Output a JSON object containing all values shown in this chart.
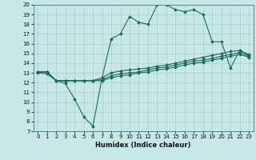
{
  "xlabel": "Humidex (Indice chaleur)",
  "background_color": "#c8e8e8",
  "grid_color": "#a8cccc",
  "line_color": "#1a6b5a",
  "xlim": [
    -0.5,
    23.5
  ],
  "ylim": [
    7,
    20
  ],
  "xticks": [
    0,
    1,
    2,
    3,
    4,
    5,
    6,
    7,
    8,
    9,
    10,
    11,
    12,
    13,
    14,
    15,
    16,
    17,
    18,
    19,
    20,
    21,
    22,
    23
  ],
  "yticks": [
    7,
    8,
    9,
    10,
    11,
    12,
    13,
    14,
    15,
    16,
    17,
    18,
    19,
    20
  ],
  "line1_x": [
    0,
    1,
    2,
    3,
    4,
    5,
    6,
    7,
    8,
    9,
    10,
    11,
    12,
    13,
    14,
    15,
    16,
    17,
    18,
    19,
    20,
    21,
    22,
    23
  ],
  "line1_y": [
    13,
    12.9,
    12.2,
    11.9,
    10.3,
    8.5,
    7.5,
    12.5,
    16.5,
    17.0,
    18.8,
    18.2,
    18.0,
    20.0,
    20.0,
    19.5,
    19.3,
    19.5,
    19.0,
    16.2,
    16.2,
    13.5,
    15.3,
    14.8
  ],
  "line2_x": [
    0,
    1,
    2,
    3,
    4,
    5,
    6,
    7,
    8,
    9,
    10,
    11,
    12,
    13,
    14,
    15,
    16,
    17,
    18,
    19,
    20,
    21,
    22,
    23
  ],
  "line2_y": [
    13.1,
    13.1,
    12.2,
    12.2,
    12.2,
    12.2,
    12.2,
    12.5,
    13.0,
    13.2,
    13.3,
    13.4,
    13.5,
    13.7,
    13.8,
    14.0,
    14.2,
    14.4,
    14.6,
    14.8,
    15.0,
    15.2,
    15.3,
    14.9
  ],
  "line3_x": [
    0,
    1,
    2,
    3,
    4,
    5,
    6,
    7,
    8,
    9,
    10,
    11,
    12,
    13,
    14,
    15,
    16,
    17,
    18,
    19,
    20,
    21,
    22,
    23
  ],
  "line3_y": [
    13.1,
    13.1,
    12.2,
    12.2,
    12.2,
    12.2,
    12.2,
    12.3,
    12.7,
    12.9,
    13.0,
    13.1,
    13.3,
    13.5,
    13.6,
    13.8,
    14.0,
    14.2,
    14.3,
    14.5,
    14.7,
    14.9,
    15.1,
    14.7
  ],
  "line4_x": [
    0,
    1,
    2,
    3,
    4,
    5,
    6,
    7,
    8,
    9,
    10,
    11,
    12,
    13,
    14,
    15,
    16,
    17,
    18,
    19,
    20,
    21,
    22,
    23
  ],
  "line4_y": [
    13.1,
    13.1,
    12.2,
    12.2,
    12.2,
    12.2,
    12.2,
    12.2,
    12.5,
    12.7,
    12.8,
    13.0,
    13.1,
    13.3,
    13.4,
    13.6,
    13.8,
    14.0,
    14.1,
    14.3,
    14.5,
    14.7,
    14.9,
    14.6
  ]
}
